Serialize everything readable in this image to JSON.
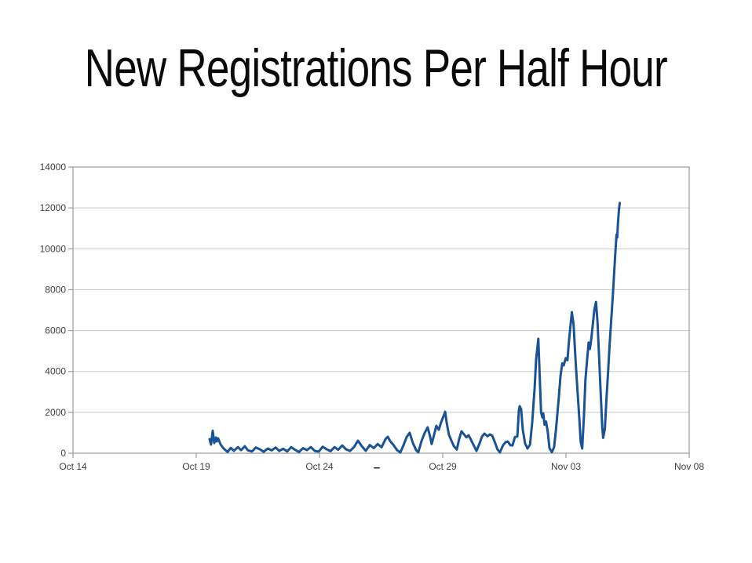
{
  "slide": {
    "title": "New Registrations Per Half Hour",
    "footer_dash": "–"
  },
  "colors": {
    "line": "#1a5296",
    "grid": "#c8c8c8",
    "axis": "#9a9a9a",
    "tick_label": "#3f3f3f",
    "title": "#0a0a0a"
  },
  "chart_data": {
    "type": "line",
    "title": "New Registrations Per Half Hour",
    "xlabel": "",
    "ylabel": "",
    "grid": "horizontal",
    "legend": "none",
    "x_unit_note": "x stored as days after Oct 14; data sampled every half hour",
    "xlim_days": [
      0,
      25
    ],
    "ylim": [
      0,
      14000
    ],
    "y_ticks": [
      0,
      2000,
      4000,
      6000,
      8000,
      10000,
      12000,
      14000
    ],
    "x_tick_days": [
      0,
      5,
      10,
      15,
      20,
      25
    ],
    "x_tick_labels": [
      "Oct 14",
      "Oct 19",
      "Oct 24",
      "Oct 29",
      "Nov 03",
      "Nov 08"
    ],
    "series": [
      {
        "name": "New registrations per half hour",
        "points": [
          [
            5.54,
            690
          ],
          [
            5.6,
            420
          ],
          [
            5.67,
            1100
          ],
          [
            5.73,
            500
          ],
          [
            5.8,
            770
          ],
          [
            5.83,
            575
          ],
          [
            5.89,
            730
          ],
          [
            5.99,
            420
          ],
          [
            6.11,
            230
          ],
          [
            6.27,
            60
          ],
          [
            6.4,
            260
          ],
          [
            6.53,
            120
          ],
          [
            6.69,
            300
          ],
          [
            6.82,
            150
          ],
          [
            6.97,
            340
          ],
          [
            7.1,
            140
          ],
          [
            7.26,
            90
          ],
          [
            7.42,
            280
          ],
          [
            7.58,
            190
          ],
          [
            7.74,
            70
          ],
          [
            7.9,
            230
          ],
          [
            8.06,
            140
          ],
          [
            8.22,
            280
          ],
          [
            8.37,
            110
          ],
          [
            8.53,
            220
          ],
          [
            8.69,
            90
          ],
          [
            8.85,
            300
          ],
          [
            9.01,
            170
          ],
          [
            9.17,
            60
          ],
          [
            9.33,
            250
          ],
          [
            9.49,
            150
          ],
          [
            9.65,
            300
          ],
          [
            9.81,
            110
          ],
          [
            9.97,
            80
          ],
          [
            10.13,
            320
          ],
          [
            10.29,
            190
          ],
          [
            10.45,
            100
          ],
          [
            10.61,
            300
          ],
          [
            10.76,
            170
          ],
          [
            10.92,
            380
          ],
          [
            11.08,
            190
          ],
          [
            11.24,
            110
          ],
          [
            11.4,
            300
          ],
          [
            11.56,
            615
          ],
          [
            11.72,
            340
          ],
          [
            11.88,
            120
          ],
          [
            12.04,
            400
          ],
          [
            12.2,
            250
          ],
          [
            12.36,
            450
          ],
          [
            12.52,
            290
          ],
          [
            12.68,
            700
          ],
          [
            12.77,
            805
          ],
          [
            12.87,
            590
          ],
          [
            12.99,
            420
          ],
          [
            13.15,
            150
          ],
          [
            13.28,
            40
          ],
          [
            13.41,
            400
          ],
          [
            13.54,
            800
          ],
          [
            13.66,
            1000
          ],
          [
            13.79,
            500
          ],
          [
            13.92,
            150
          ],
          [
            14.01,
            50
          ],
          [
            14.14,
            600
          ],
          [
            14.27,
            1000
          ],
          [
            14.39,
            1270
          ],
          [
            14.49,
            800
          ],
          [
            14.55,
            450
          ],
          [
            14.65,
            900
          ],
          [
            14.74,
            1340
          ],
          [
            14.84,
            1150
          ],
          [
            14.93,
            1500
          ],
          [
            15.03,
            1800
          ],
          [
            15.1,
            2030
          ],
          [
            15.16,
            1500
          ],
          [
            15.25,
            900
          ],
          [
            15.35,
            620
          ],
          [
            15.45,
            350
          ],
          [
            15.57,
            180
          ],
          [
            15.67,
            700
          ],
          [
            15.76,
            1075
          ],
          [
            15.86,
            930
          ],
          [
            15.96,
            780
          ],
          [
            16.05,
            880
          ],
          [
            16.15,
            650
          ],
          [
            16.27,
            350
          ],
          [
            16.37,
            110
          ],
          [
            16.5,
            500
          ],
          [
            16.59,
            800
          ],
          [
            16.69,
            960
          ],
          [
            16.82,
            830
          ],
          [
            16.91,
            920
          ],
          [
            17.01,
            860
          ],
          [
            17.13,
            490
          ],
          [
            17.22,
            190
          ],
          [
            17.32,
            40
          ],
          [
            17.45,
            390
          ],
          [
            17.55,
            540
          ],
          [
            17.64,
            575
          ],
          [
            17.74,
            400
          ],
          [
            17.83,
            380
          ],
          [
            17.93,
            790
          ],
          [
            18.03,
            820
          ],
          [
            18.09,
            2100
          ],
          [
            18.12,
            2300
          ],
          [
            18.18,
            2150
          ],
          [
            18.25,
            1150
          ],
          [
            18.34,
            480
          ],
          [
            18.44,
            230
          ],
          [
            18.54,
            420
          ],
          [
            18.63,
            1500
          ],
          [
            18.73,
            3200
          ],
          [
            18.79,
            4600
          ],
          [
            18.88,
            5600
          ],
          [
            18.95,
            3300
          ],
          [
            18.99,
            2000
          ],
          [
            19.04,
            1750
          ],
          [
            19.08,
            1950
          ],
          [
            19.13,
            1400
          ],
          [
            19.19,
            1550
          ],
          [
            19.26,
            1050
          ],
          [
            19.33,
            250
          ],
          [
            19.43,
            50
          ],
          [
            19.52,
            300
          ],
          [
            19.6,
            1200
          ],
          [
            19.7,
            2600
          ],
          [
            19.78,
            3800
          ],
          [
            19.85,
            4400
          ],
          [
            19.91,
            4300
          ],
          [
            19.99,
            4650
          ],
          [
            20.06,
            4550
          ],
          [
            20.13,
            5600
          ],
          [
            20.24,
            6900
          ],
          [
            20.31,
            6300
          ],
          [
            20.4,
            4300
          ],
          [
            20.47,
            3000
          ],
          [
            20.54,
            1700
          ],
          [
            20.6,
            550
          ],
          [
            20.66,
            230
          ],
          [
            20.73,
            1800
          ],
          [
            20.79,
            3600
          ],
          [
            20.86,
            4600
          ],
          [
            20.92,
            5420
          ],
          [
            20.97,
            5100
          ],
          [
            21.03,
            5600
          ],
          [
            21.09,
            6300
          ],
          [
            21.15,
            7000
          ],
          [
            21.22,
            7400
          ],
          [
            21.28,
            6400
          ],
          [
            21.34,
            4800
          ],
          [
            21.41,
            2900
          ],
          [
            21.47,
            1300
          ],
          [
            21.51,
            750
          ],
          [
            21.58,
            1200
          ],
          [
            21.64,
            2600
          ],
          [
            21.71,
            4000
          ],
          [
            21.77,
            5300
          ],
          [
            21.84,
            6600
          ],
          [
            21.9,
            7700
          ],
          [
            21.96,
            8900
          ],
          [
            22.02,
            10100
          ],
          [
            22.05,
            10690
          ],
          [
            22.08,
            10550
          ],
          [
            22.11,
            11300
          ],
          [
            22.15,
            11900
          ],
          [
            22.18,
            12240
          ]
        ]
      }
    ]
  }
}
